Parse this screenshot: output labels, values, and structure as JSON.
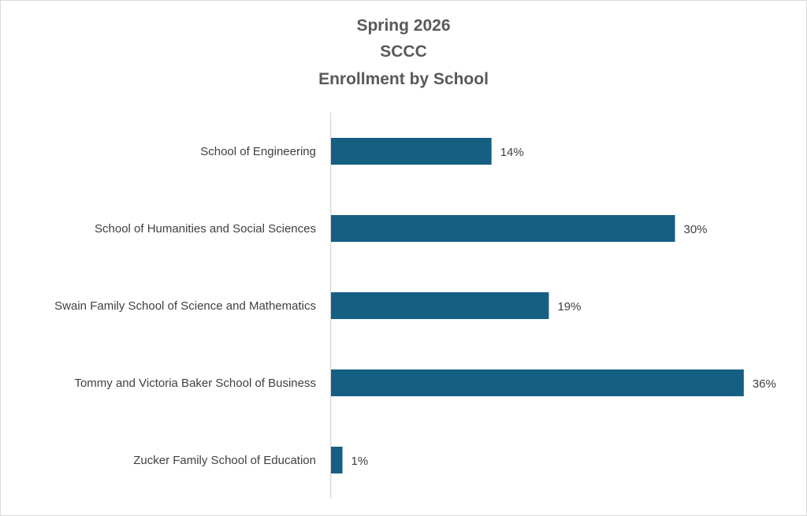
{
  "chart_data": {
    "type": "bar",
    "orientation": "horizontal",
    "title_lines": [
      "Spring 2026",
      "SCCC",
      "Enrollment by School"
    ],
    "categories": [
      "School of Engineering",
      "School of Humanities and Social Sciences",
      "Swain Family School of Science and Mathematics",
      "Tommy and Victoria Baker School of Business",
      "Zucker Family School of Education"
    ],
    "values": [
      14,
      30,
      19,
      36,
      1
    ],
    "value_labels": [
      "14%",
      "30%",
      "19%",
      "36%",
      "1%"
    ],
    "unit": "%",
    "bar_color": "#155F82",
    "grid": false,
    "legend": "none",
    "xlabel": "",
    "ylabel": ""
  }
}
